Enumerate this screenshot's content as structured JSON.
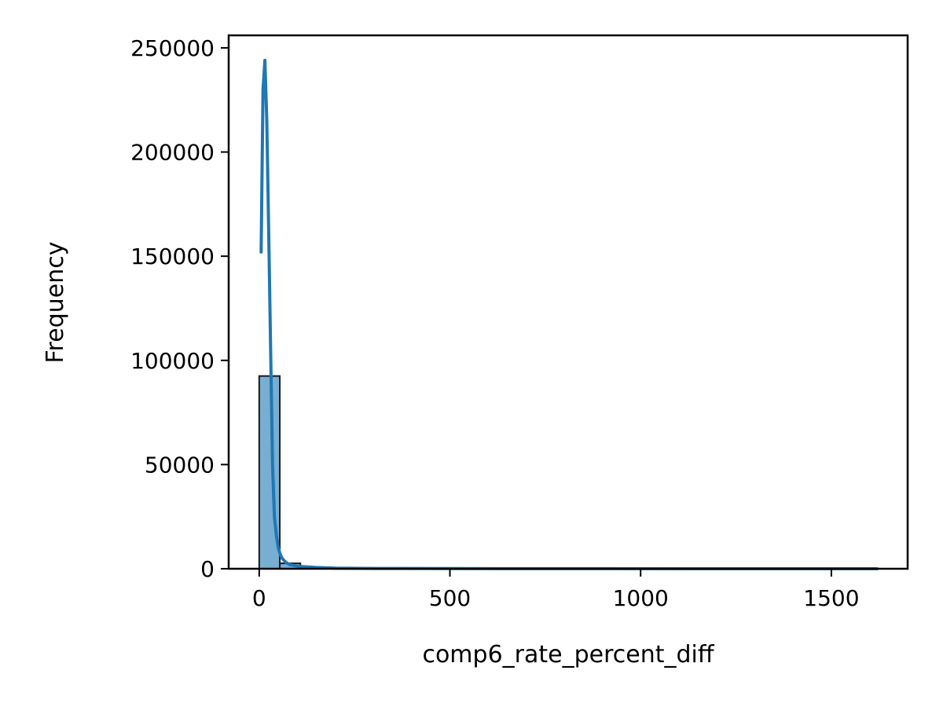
{
  "chart_data": {
    "type": "bar",
    "title": "",
    "xlabel": "comp6_rate_percent_diff",
    "ylabel": "Frequency",
    "xlim": [
      -80,
      1700
    ],
    "ylim": [
      0,
      256000
    ],
    "xticks": [
      0,
      500,
      1000,
      1500
    ],
    "yticks": [
      0,
      50000,
      100000,
      150000,
      200000,
      250000
    ],
    "grid": false,
    "bin_edges": [
      0,
      54,
      108,
      162,
      216,
      270,
      324,
      378,
      432,
      486,
      540,
      594,
      648,
      702,
      756,
      810,
      864,
      918,
      972,
      1026,
      1080,
      1134,
      1188,
      1242,
      1296,
      1350,
      1404,
      1458,
      1512,
      1566,
      1620
    ],
    "counts": [
      92500,
      2600,
      500,
      200,
      100,
      60,
      40,
      30,
      20,
      15,
      10,
      10,
      5,
      5,
      5,
      5,
      3,
      3,
      3,
      3,
      2,
      2,
      2,
      2,
      2,
      2,
      2,
      2,
      2,
      2
    ],
    "kde": {
      "x": [
        5,
        10,
        15,
        20,
        25,
        30,
        35,
        40,
        45,
        50,
        55,
        60,
        70,
        80,
        100,
        150,
        200,
        300,
        500,
        800,
        1200,
        1620
      ],
      "y": [
        152000,
        230000,
        244000,
        215000,
        160000,
        105000,
        50000,
        25000,
        16000,
        10000,
        7000,
        5000,
        3000,
        2000,
        1200,
        600,
        300,
        150,
        60,
        30,
        10,
        5
      ]
    },
    "colors": {
      "bar_fill": "#78aed2",
      "bar_edge": "#1a1a1a",
      "kde_line": "#1f77b4"
    }
  }
}
